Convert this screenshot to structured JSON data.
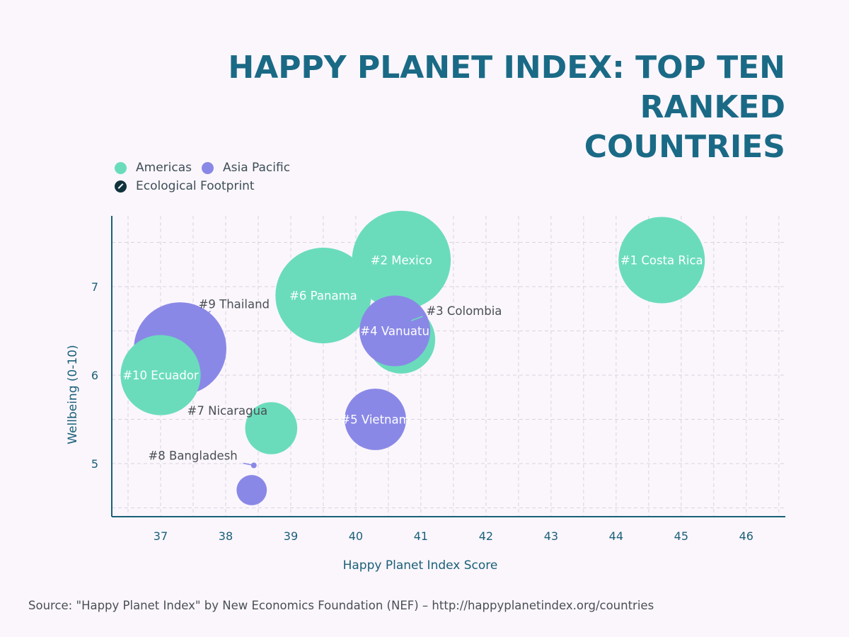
{
  "title_lines": [
    "HAPPY PLANET INDEX: TOP TEN RANKED",
    "COUNTRIES"
  ],
  "legend": {
    "americas": "Americas",
    "asia_pacific": "Asia Pacific",
    "footprint": "Ecological Footprint"
  },
  "colors": {
    "americas": "#6adcbc",
    "asia_pacific": "#8a88e6",
    "axis": "#1a5f78",
    "title": "#1a6a86",
    "grid": "#d9d3df",
    "leader": "#8a88e6"
  },
  "source": "Source: \"Happy Planet Index\" by New Economics Foundation (NEF) – http://happyplanetindex.org/countries",
  "chart_data": {
    "type": "scatter",
    "subtype": "bubble",
    "title": "HAPPY PLANET INDEX: TOP TEN RANKED COUNTRIES",
    "xlabel": "Happy Planet Index Score",
    "ylabel": "Wellbeing (0-10)",
    "xlim": [
      36.25,
      46.6
    ],
    "ylim": [
      4.4,
      7.8
    ],
    "xticks": [
      37,
      38,
      39,
      40,
      41,
      42,
      43,
      44,
      45,
      46
    ],
    "yticks": [
      5,
      6,
      7
    ],
    "size_variable": "Ecological Footprint",
    "grid": true,
    "legend_position": "top-left",
    "points": [
      {
        "label": "#1 Costa Rica",
        "region": "Americas",
        "x": 44.7,
        "y": 7.3,
        "footprint": 2.5,
        "label_inside": true
      },
      {
        "label": "#2 Mexico",
        "region": "Americas",
        "x": 40.7,
        "y": 7.3,
        "footprint": 2.9,
        "label_inside": true
      },
      {
        "label": "#3 Colombia",
        "region": "Americas",
        "x": 40.7,
        "y": 6.4,
        "footprint": 1.9,
        "label_inside": false
      },
      {
        "label": "#4 Vanuatu",
        "region": "Asia Pacific",
        "x": 40.6,
        "y": 6.5,
        "footprint": 2.0,
        "label_inside": true
      },
      {
        "label": "#5 Vietnam",
        "region": "Asia Pacific",
        "x": 40.3,
        "y": 5.5,
        "footprint": 1.7,
        "label_inside": true
      },
      {
        "label": "#6 Panama",
        "region": "Americas",
        "x": 39.5,
        "y": 6.9,
        "footprint": 2.8,
        "label_inside": true
      },
      {
        "label": "#7 Nicaragua",
        "region": "Americas",
        "x": 38.7,
        "y": 5.4,
        "footprint": 1.4,
        "label_inside": false
      },
      {
        "label": "#8 Bangladesh",
        "region": "Asia Pacific",
        "x": 38.4,
        "y": 4.7,
        "footprint": 0.7,
        "label_inside": false
      },
      {
        "label": "#9 Thailand",
        "region": "Asia Pacific",
        "x": 37.3,
        "y": 6.3,
        "footprint": 2.7,
        "label_inside": false
      },
      {
        "label": "#10 Ecuador",
        "region": "Americas",
        "x": 37.0,
        "y": 6.0,
        "footprint": 2.3,
        "label_inside": true
      }
    ]
  }
}
